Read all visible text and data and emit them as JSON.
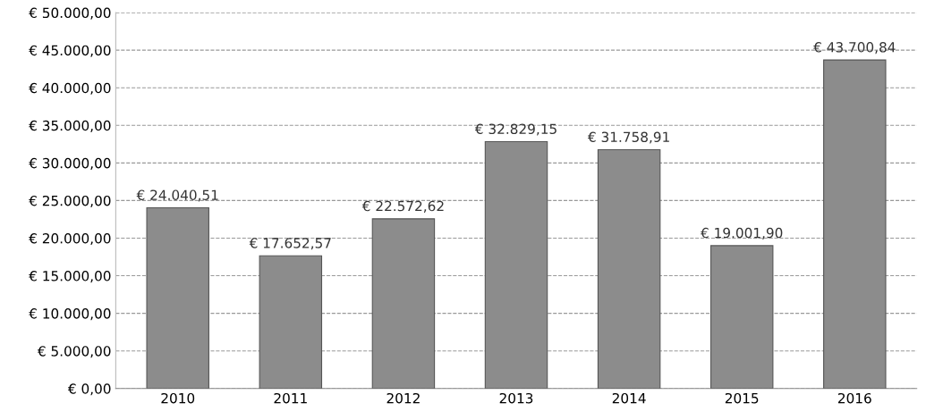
{
  "chart_data": {
    "type": "bar",
    "categories": [
      "2010",
      "2011",
      "2012",
      "2013",
      "2014",
      "2015",
      "2016"
    ],
    "values": [
      24040.51,
      17652.57,
      22572.62,
      32829.15,
      31758.91,
      19001.9,
      43700.84
    ],
    "value_labels": [
      "€ 24.040,51",
      "€ 17.652,57",
      "€ 22.572,62",
      "€ 32.829,15",
      "€ 31.758,91",
      "€ 19.001,90",
      "€ 43.700,84"
    ],
    "color": "#8c8c8c",
    "ylim": [
      0,
      50000
    ],
    "yticks": [
      {
        "value": 0,
        "label": "€ 0,00"
      },
      {
        "value": 5000,
        "label": "€ 5.000,00"
      },
      {
        "value": 10000,
        "label": "€ 10.000,00"
      },
      {
        "value": 15000,
        "label": "€ 15.000,00"
      },
      {
        "value": 20000,
        "label": "€ 20.000,00"
      },
      {
        "value": 25000,
        "label": "€ 25.000,00"
      },
      {
        "value": 30000,
        "label": "€ 30.000,00"
      },
      {
        "value": 35000,
        "label": "€ 35.000,00"
      },
      {
        "value": 40000,
        "label": "€ 40.000,00"
      },
      {
        "value": 45000,
        "label": "€ 45.000,00"
      },
      {
        "value": 50000,
        "label": "€ 50.000,00"
      }
    ],
    "grid": "y",
    "line_style": "dashed"
  }
}
